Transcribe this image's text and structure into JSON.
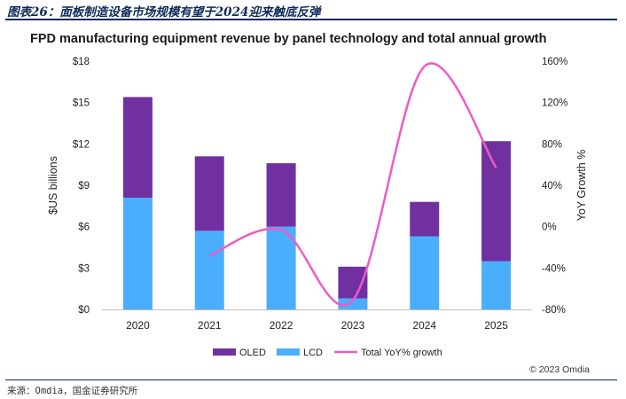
{
  "report": {
    "caption": "图表26：面板制造设备市场规模有望于2024迎来触底反弹",
    "source": "来源：Omdia，国金证券研究所"
  },
  "chart_data": {
    "type": "bar",
    "title": "FPD manufacturing equipment revenue by panel technology and total annual growth",
    "categories": [
      "2020",
      "2021",
      "2022",
      "2023",
      "2024",
      "2025"
    ],
    "series": [
      {
        "name": "LCD",
        "type": "stacked-bar",
        "axis": "left",
        "color": "#4aaefc",
        "values": [
          8.1,
          5.7,
          6.0,
          0.8,
          5.3,
          3.5
        ]
      },
      {
        "name": "OLED",
        "type": "stacked-bar",
        "axis": "left",
        "color": "#7030a0",
        "values": [
          7.3,
          5.4,
          4.6,
          2.3,
          2.5,
          8.7
        ]
      },
      {
        "name": "Total YoY% growth",
        "type": "line",
        "axis": "right",
        "color": "#ee5bc5",
        "values": [
          null,
          -28,
          -3,
          -71,
          155,
          57
        ]
      }
    ],
    "ylabel": "$US billions",
    "ylim": [
      0,
      18
    ],
    "yticks": [
      "$0",
      "$3",
      "$6",
      "$9",
      "$12",
      "$15",
      "$18"
    ],
    "y2label": "YoY Growth %",
    "y2lim": [
      -80,
      160
    ],
    "y2ticks": [
      "-80%",
      "-40%",
      "0%",
      "40%",
      "80%",
      "120%",
      "160%"
    ],
    "legend": {
      "position": "bottom",
      "items": [
        "OLED",
        "LCD",
        "Total YoY% growth"
      ]
    },
    "grid": false,
    "copyright": "© 2023 Omdia"
  }
}
